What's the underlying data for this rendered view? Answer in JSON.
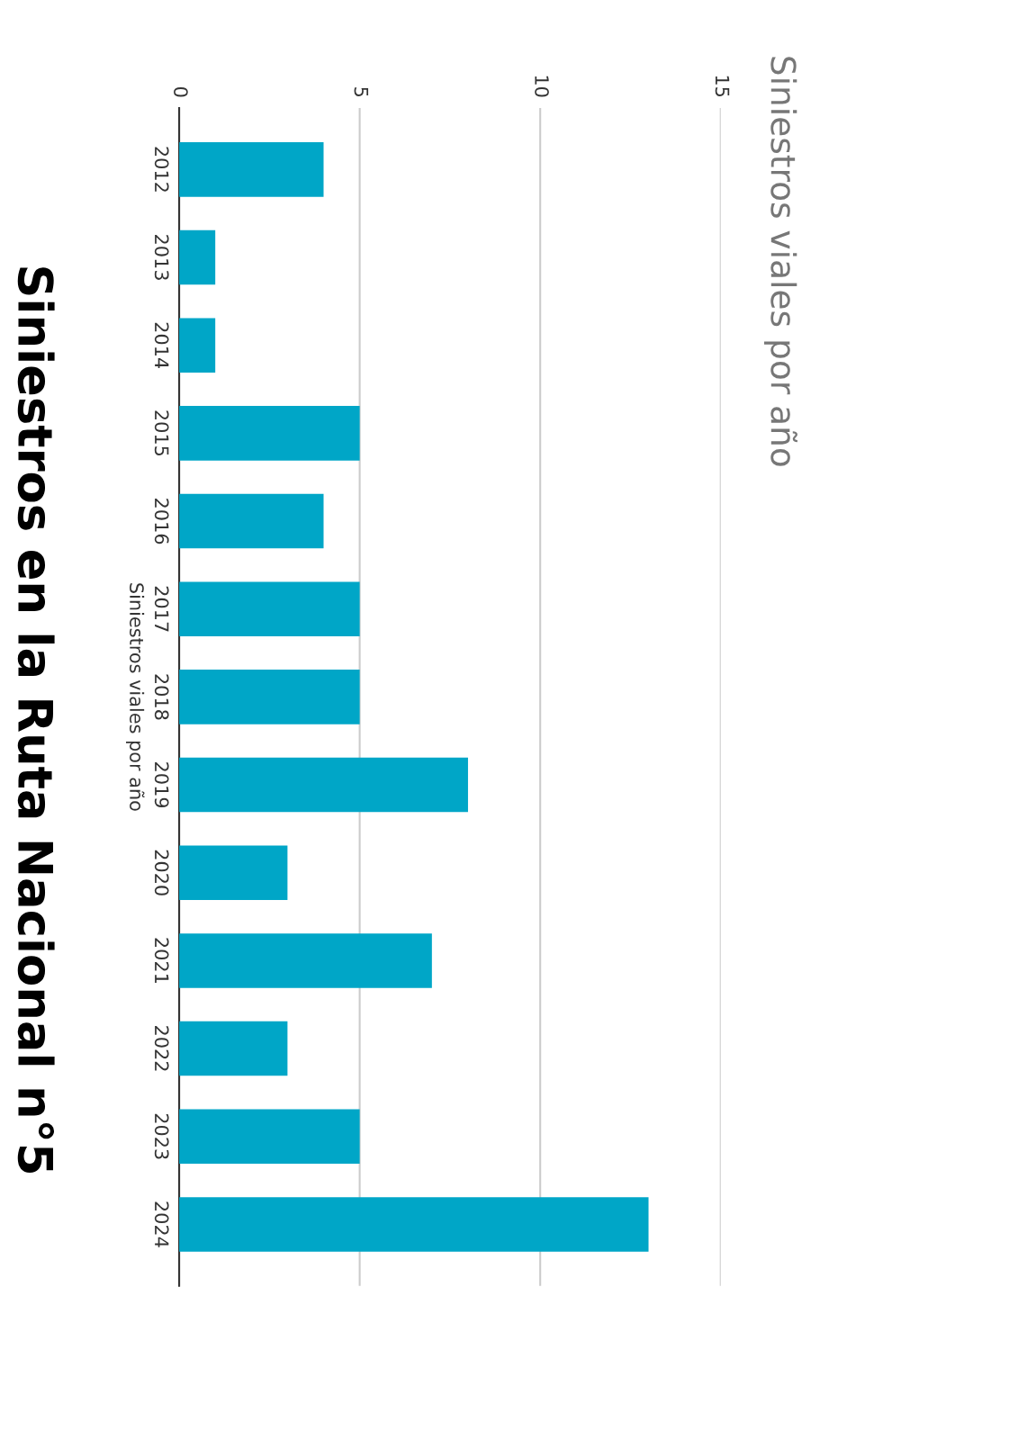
{
  "chart_data": {
    "type": "bar",
    "orientation": "horizontal",
    "title": "Siniestros viales por año",
    "ylabel": "Siniestros viales por año",
    "annotations": [
      "Siniestros en la Ruta Nacional n°5"
    ],
    "categories": [
      "2012",
      "2013",
      "2014",
      "2015",
      "2016",
      "2017",
      "2018",
      "2019",
      "2020",
      "2021",
      "2022",
      "2023",
      "2024"
    ],
    "values": [
      4,
      1,
      1,
      5,
      4,
      5,
      5,
      8,
      3,
      7,
      3,
      5,
      13
    ],
    "color": "#00a6c7",
    "xlim": [
      0,
      15
    ],
    "xticks": [
      0,
      5,
      10,
      15
    ],
    "grid": "x",
    "legend": false
  }
}
